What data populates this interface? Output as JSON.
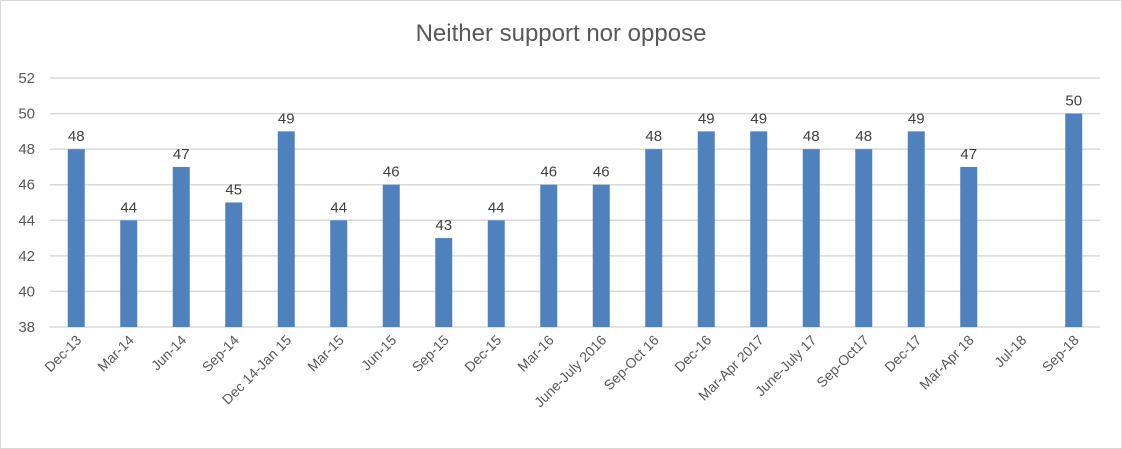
{
  "chart_data": {
    "type": "bar",
    "title": "Neither support nor oppose",
    "xlabel": "",
    "ylabel": "",
    "ylim": [
      38,
      52
    ],
    "yticks": [
      38,
      40,
      42,
      44,
      46,
      48,
      50,
      52
    ],
    "grid": true,
    "legend": null,
    "bar_color": "#4f81bd",
    "data_labels": true,
    "categories": [
      "Dec-13",
      "Mar-14",
      "Jun-14",
      "Sep-14",
      "Dec 14-Jan 15",
      "Mar-15",
      "Jun-15",
      "Sep-15",
      "Dec-15",
      "Mar-16",
      "June-July 2016",
      "Sep-Oct 16",
      "Dec-16",
      "Mar-Apr 2017",
      "June-July 17",
      "Sep-Oct17",
      "Dec-17",
      "Mar-Apr 18",
      "Jul-18",
      "Sep-18"
    ],
    "values": [
      48,
      44,
      47,
      45,
      49,
      44,
      46,
      43,
      44,
      46,
      46,
      48,
      49,
      49,
      48,
      48,
      49,
      47,
      null,
      50
    ]
  }
}
